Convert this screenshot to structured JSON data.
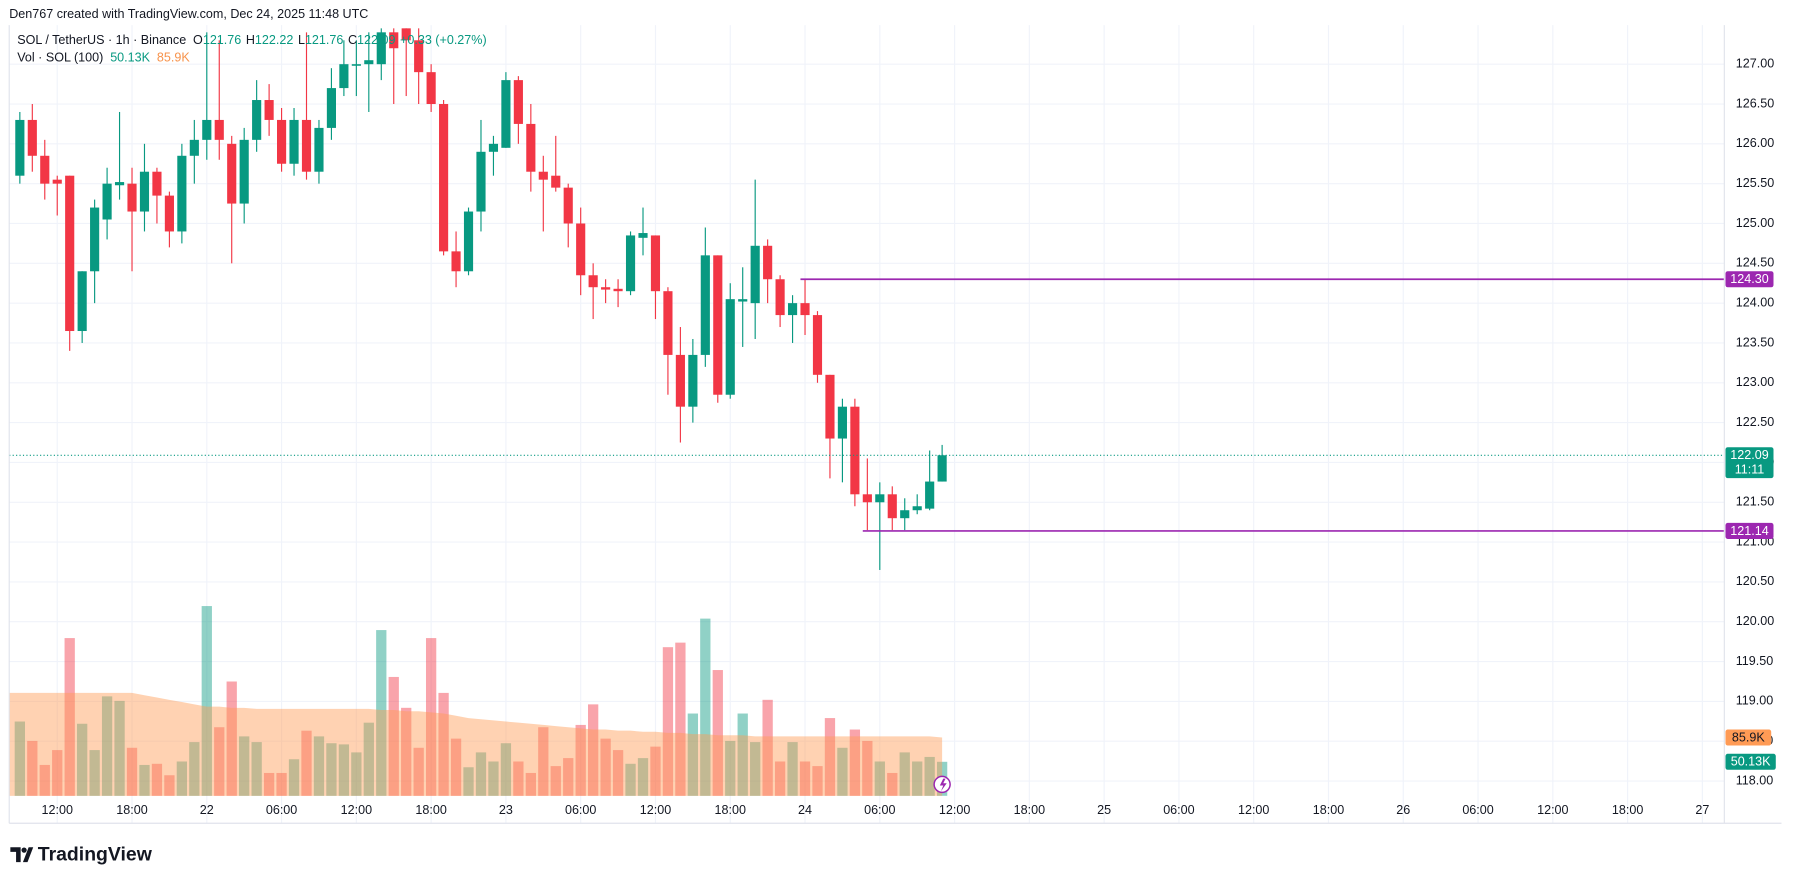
{
  "chart_data": {
    "type": "candlestick",
    "header": "Den767 created with TradingView.com, Dec 24, 2025 11:48 UTC",
    "symbol": "SOL / TetherUS · 1h · Binance",
    "ohlc_labels": [
      "O",
      "H",
      "L",
      "C"
    ],
    "change": "+0.33 (+0.27%)",
    "volume_title": "Vol · SOL (100)",
    "volume_label": "50.13K",
    "volume_ma_label": "85.9K",
    "countdown": "11:11",
    "brand": "TradingView",
    "up_color": "#089981",
    "down_color": "#f23645",
    "ma_color": "#ff9b55",
    "grid": true,
    "ylim": [
      117.47,
      127.49
    ],
    "yticks": [
      {
        "value": 118,
        "label": "118.00"
      },
      {
        "value": 118.5,
        "label": "118.50"
      },
      {
        "value": 119,
        "label": "119.00"
      },
      {
        "value": 119.5,
        "label": "119.50"
      },
      {
        "value": 120,
        "label": "120.00"
      },
      {
        "value": 120.5,
        "label": "120.50"
      },
      {
        "value": 121,
        "label": "121.00"
      },
      {
        "value": 121.5,
        "label": "121.50"
      },
      {
        "value": 122,
        "label": "122.00"
      },
      {
        "value": 122.5,
        "label": "122.50"
      },
      {
        "value": 123,
        "label": "123.00"
      },
      {
        "value": 123.5,
        "label": "123.50"
      },
      {
        "value": 124,
        "label": "124.00"
      },
      {
        "value": 124.5,
        "label": "124.50"
      },
      {
        "value": 125,
        "label": "125.00"
      },
      {
        "value": 125.5,
        "label": "125.50"
      },
      {
        "value": 126,
        "label": "126.00"
      },
      {
        "value": 126.5,
        "label": "126.50"
      },
      {
        "value": 127,
        "label": "127.00"
      }
    ],
    "xticks": [
      "12:00",
      "18:00",
      "22",
      "06:00",
      "12:00",
      "18:00",
      "23",
      "06:00",
      "12:00",
      "18:00",
      "24",
      "06:00",
      "12:00",
      "18:00",
      "25",
      "06:00",
      "12:00",
      "18:00",
      "26",
      "06:00",
      "12:00",
      "18:00",
      "27"
    ],
    "volume_lim": [
      0,
      600000
    ],
    "hlines": [
      {
        "value": 124.3,
        "label": "124.30",
        "color": "#9c27b0",
        "from": 63
      },
      {
        "value": 121.14,
        "label": "121.14",
        "color": "#9c27b0",
        "from": 68
      }
    ],
    "open": [
      125.6,
      126.3,
      125.85,
      125.55,
      125.6,
      123.65,
      124.4,
      125.05,
      125.48,
      125.5,
      125.15,
      125.65,
      125.35,
      124.9,
      125.85,
      126.05,
      126.3,
      126.0,
      125.25,
      126.05,
      126.55,
      126.3,
      125.75,
      126.3,
      125.65,
      126.2,
      126.7,
      126.98,
      127.0,
      127.0,
      127.4,
      127.45,
      127.3,
      126.9,
      126.5,
      124.65,
      124.4,
      125.15,
      125.9,
      125.95,
      126.8,
      126.25,
      125.65,
      125.6,
      125.45,
      125.0,
      124.35,
      124.2,
      124.18,
      124.15,
      124.82,
      124.85,
      124.15,
      123.35,
      122.7,
      123.35,
      124.6,
      122.85,
      124.02,
      124.0,
      124.72,
      124.3,
      123.85,
      124.0,
      123.85,
      123.1,
      122.3,
      122.7,
      121.6,
      121.5,
      121.6,
      121.3,
      121.4,
      121.42,
      121.76
    ],
    "high": [
      126.4,
      126.5,
      126.05,
      125.6,
      125.6,
      124.4,
      125.3,
      125.7,
      126.4,
      125.7,
      126.0,
      125.7,
      125.4,
      126.0,
      126.3,
      127.4,
      127.3,
      126.1,
      126.2,
      126.8,
      126.75,
      126.45,
      126.45,
      127.4,
      126.3,
      126.95,
      127.3,
      127.3,
      127.4,
      127.45,
      127.45,
      127.45,
      127.45,
      127.0,
      126.55,
      124.9,
      125.2,
      126.3,
      126.1,
      126.9,
      126.85,
      126.5,
      125.85,
      126.1,
      125.5,
      125.2,
      124.5,
      124.3,
      124.3,
      124.9,
      125.2,
      124.85,
      124.2,
      123.7,
      123.55,
      124.95,
      124.6,
      124.25,
      124.45,
      125.55,
      124.8,
      124.35,
      124.1,
      124.3,
      123.9,
      123.1,
      122.8,
      122.8,
      122.05,
      121.75,
      121.7,
      121.55,
      121.6,
      122.15,
      122.22
    ],
    "low": [
      125.5,
      125.65,
      125.3,
      125.1,
      123.4,
      123.5,
      124.0,
      124.8,
      125.3,
      124.4,
      124.9,
      125.0,
      124.7,
      124.75,
      125.5,
      125.8,
      125.8,
      124.5,
      125.0,
      125.9,
      126.1,
      125.65,
      125.6,
      125.55,
      125.5,
      126.05,
      126.6,
      126.6,
      126.4,
      126.8,
      126.5,
      126.6,
      126.5,
      126.4,
      124.6,
      124.2,
      124.35,
      124.9,
      125.6,
      125.95,
      126.0,
      125.4,
      124.9,
      125.4,
      124.7,
      124.1,
      123.8,
      124.0,
      123.95,
      124.1,
      124.6,
      123.8,
      122.85,
      122.25,
      122.5,
      123.2,
      122.75,
      122.8,
      123.45,
      123.55,
      124.0,
      123.7,
      123.5,
      123.6,
      123.0,
      121.8,
      121.75,
      121.45,
      121.15,
      120.65,
      121.15,
      121.15,
      121.35,
      121.4,
      121.76
    ],
    "close": [
      126.3,
      125.85,
      125.5,
      125.5,
      123.65,
      124.4,
      125.2,
      125.5,
      125.52,
      125.15,
      125.65,
      125.35,
      124.9,
      125.85,
      126.05,
      126.3,
      126.05,
      125.25,
      126.05,
      126.55,
      126.3,
      125.75,
      126.3,
      125.65,
      126.2,
      126.7,
      127.0,
      127.0,
      127.05,
      127.4,
      127.2,
      127.3,
      126.9,
      126.5,
      124.65,
      124.4,
      125.15,
      125.9,
      126.0,
      126.8,
      126.25,
      125.65,
      125.55,
      125.45,
      125.0,
      124.35,
      124.2,
      124.17,
      124.15,
      124.85,
      124.88,
      124.15,
      123.35,
      122.7,
      123.35,
      124.6,
      122.85,
      124.05,
      124.05,
      124.72,
      124.3,
      123.85,
      124.0,
      123.85,
      123.1,
      122.3,
      122.7,
      121.6,
      121.5,
      121.6,
      121.3,
      121.4,
      121.45,
      121.76,
      122.09
    ],
    "volume": [
      109500,
      80900,
      45500,
      67400,
      232500,
      106200,
      67400,
      146600,
      139900,
      70800,
      45500,
      47200,
      30300,
      50600,
      79200,
      279700,
      101100,
      168500,
      87600,
      79200,
      33700,
      33700,
      53900,
      96000,
      87600,
      77500,
      75800,
      64000,
      107800,
      244300,
      175200,
      129700,
      70800,
      232500,
      151700,
      84300,
      42100,
      64000,
      50600,
      77500,
      50600,
      33700,
      101100,
      43800,
      55600,
      104500,
      134800,
      84300,
      67400,
      47200,
      55600,
      72500,
      219100,
      225800,
      121300,
      261200,
      185400,
      80900,
      121300,
      79200,
      141500,
      50600,
      79200,
      50600,
      43800,
      114600,
      70800,
      97700,
      80900,
      50600,
      33700,
      64000,
      50600,
      57300,
      50130
    ],
    "volume_ma": [
      151700,
      151700,
      151700,
      151700,
      151700,
      151700,
      151700,
      151700,
      151700,
      151700,
      148300,
      144900,
      141500,
      138200,
      134800,
      131400,
      131400,
      129700,
      129700,
      128100,
      128100,
      128100,
      128100,
      128100,
      128100,
      128100,
      128100,
      128100,
      128100,
      126400,
      126400,
      124700,
      124700,
      123000,
      121300,
      118000,
      114600,
      112900,
      111200,
      109500,
      107800,
      106200,
      104500,
      102800,
      101100,
      99400,
      97700,
      97700,
      96000,
      96000,
      94400,
      94400,
      92700,
      92700,
      91000,
      91000,
      89300,
      89300,
      89300,
      87600,
      87600,
      87600,
      87600,
      87600,
      87600,
      87600,
      87600,
      87600,
      87600,
      87600,
      87600,
      87600,
      87600,
      87600,
      85900
    ]
  }
}
